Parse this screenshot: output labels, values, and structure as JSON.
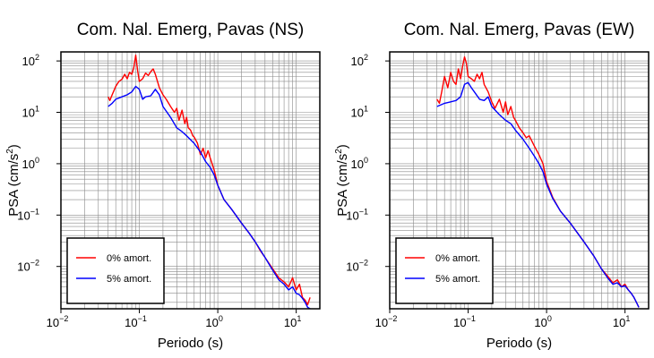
{
  "chart_data": [
    {
      "type": "line",
      "title": "Com. Nal. Emerg, Pavas (NS)",
      "xlabel": "Periodo (s)",
      "ylabel_main": "PSA (cm/s",
      "ylabel_sup": "2",
      "ylabel_end": ")",
      "xscale": "log",
      "yscale": "log",
      "xlim": [
        0.01,
        20
      ],
      "ylim": [
        0.0015,
        150
      ],
      "grid": true,
      "legend_position": "bottom-left",
      "x_ticks": [
        {
          "base": "10",
          "exp": "−2",
          "value": 0.01
        },
        {
          "base": "10",
          "exp": "−1",
          "value": 0.1
        },
        {
          "base": "10",
          "exp": "0",
          "value": 1
        },
        {
          "base": "10",
          "exp": "1",
          "value": 10
        }
      ],
      "y_ticks": [
        {
          "base": "10",
          "exp": "2",
          "value": 100
        },
        {
          "base": "10",
          "exp": "1",
          "value": 10
        },
        {
          "base": "10",
          "exp": "0",
          "value": 1
        },
        {
          "base": "10",
          "exp": "−1",
          "value": 0.1
        },
        {
          "base": "10",
          "exp": "−2",
          "value": 0.01
        }
      ],
      "series": [
        {
          "name": "0% amort.",
          "color": "#ff0000",
          "x": [
            0.04,
            0.042,
            0.045,
            0.05,
            0.055,
            0.06,
            0.065,
            0.07,
            0.075,
            0.08,
            0.085,
            0.09,
            0.095,
            0.1,
            0.11,
            0.12,
            0.13,
            0.14,
            0.15,
            0.16,
            0.18,
            0.2,
            0.22,
            0.25,
            0.28,
            0.3,
            0.32,
            0.35,
            0.38,
            0.4,
            0.42,
            0.45,
            0.48,
            0.5,
            0.55,
            0.6,
            0.65,
            0.7,
            0.75,
            0.8,
            0.9,
            1.0,
            1.2,
            1.5,
            2.0,
            2.5,
            3.0,
            3.5,
            4.0,
            5.0,
            6.0,
            7.0,
            8.0,
            9.0,
            10.0,
            11.0,
            12.0,
            13.0,
            14.0,
            15.0
          ],
          "y": [
            20,
            17,
            22,
            32,
            40,
            44,
            55,
            45,
            60,
            55,
            75,
            130,
            65,
            40,
            45,
            58,
            52,
            62,
            70,
            55,
            30,
            22,
            18,
            13,
            10,
            12,
            7,
            11,
            6,
            8,
            5,
            4.5,
            3.5,
            3.3,
            2.5,
            1.5,
            2,
            1.3,
            1.8,
            1.3,
            0.75,
            0.38,
            0.2,
            0.13,
            0.07,
            0.045,
            0.03,
            0.02,
            0.015,
            0.009,
            0.006,
            0.005,
            0.004,
            0.006,
            0.0035,
            0.0045,
            0.0025,
            0.0022,
            0.0018,
            0.0025
          ]
        },
        {
          "name": "5% amort.",
          "color": "#0000ff",
          "x": [
            0.04,
            0.045,
            0.05,
            0.06,
            0.07,
            0.08,
            0.09,
            0.1,
            0.11,
            0.12,
            0.14,
            0.16,
            0.18,
            0.2,
            0.25,
            0.3,
            0.35,
            0.4,
            0.5,
            0.6,
            0.7,
            0.8,
            0.9,
            1.0,
            1.2,
            1.5,
            2.0,
            2.5,
            3.0,
            4.0,
            5.0,
            6.0,
            7.0,
            8.0,
            9.0,
            10.0,
            11.0,
            12.0,
            13.0,
            14.0,
            15.0
          ],
          "y": [
            13,
            15,
            18,
            20,
            22,
            25,
            32,
            28,
            18,
            20,
            21,
            28,
            22,
            13,
            8,
            5,
            4.2,
            3.5,
            2.5,
            1.7,
            1.1,
            0.85,
            0.6,
            0.38,
            0.2,
            0.13,
            0.07,
            0.045,
            0.03,
            0.015,
            0.0085,
            0.0055,
            0.0045,
            0.0035,
            0.004,
            0.003,
            0.0028,
            0.0024,
            0.002,
            0.0016,
            0.0015
          ]
        }
      ]
    },
    {
      "type": "line",
      "title": "Com. Nal. Emerg, Pavas (EW)",
      "xlabel": "Periodo (s)",
      "ylabel_main": "PSA (cm/s",
      "ylabel_sup": "2",
      "ylabel_end": ")",
      "xscale": "log",
      "yscale": "log",
      "xlim": [
        0.01,
        20
      ],
      "ylim": [
        0.0015,
        150
      ],
      "grid": true,
      "legend_position": "bottom-left",
      "x_ticks": [
        {
          "base": "10",
          "exp": "−2",
          "value": 0.01
        },
        {
          "base": "10",
          "exp": "−1",
          "value": 0.1
        },
        {
          "base": "10",
          "exp": "0",
          "value": 1
        },
        {
          "base": "10",
          "exp": "1",
          "value": 10
        }
      ],
      "y_ticks": [
        {
          "base": "10",
          "exp": "2",
          "value": 100
        },
        {
          "base": "10",
          "exp": "1",
          "value": 10
        },
        {
          "base": "10",
          "exp": "0",
          "value": 1
        },
        {
          "base": "10",
          "exp": "−1",
          "value": 0.1
        },
        {
          "base": "10",
          "exp": "−2",
          "value": 0.01
        }
      ],
      "series": [
        {
          "name": "0% amort.",
          "color": "#ff0000",
          "x": [
            0.04,
            0.043,
            0.046,
            0.05,
            0.055,
            0.06,
            0.065,
            0.07,
            0.075,
            0.08,
            0.085,
            0.09,
            0.095,
            0.1,
            0.11,
            0.12,
            0.13,
            0.14,
            0.15,
            0.16,
            0.18,
            0.2,
            0.22,
            0.25,
            0.28,
            0.3,
            0.32,
            0.35,
            0.38,
            0.4,
            0.45,
            0.5,
            0.55,
            0.6,
            0.7,
            0.8,
            0.9,
            1.0,
            1.2,
            1.5,
            2.0,
            3.0,
            4.0,
            5.0,
            6.0,
            7.0,
            8.0,
            9.0,
            10.0,
            11.0,
            12.0,
            13.0,
            14.0,
            15.0
          ],
          "y": [
            18,
            15,
            25,
            50,
            30,
            60,
            40,
            35,
            70,
            45,
            80,
            120,
            90,
            50,
            45,
            40,
            55,
            45,
            60,
            35,
            25,
            16,
            12,
            18,
            10,
            16,
            9,
            13,
            8,
            7,
            5,
            4,
            3.2,
            3.5,
            2.2,
            1.5,
            1.0,
            0.45,
            0.22,
            0.12,
            0.07,
            0.03,
            0.016,
            0.009,
            0.0065,
            0.0048,
            0.0055,
            0.004,
            0.0045,
            0.0035,
            0.003,
            0.0025,
            0.002,
            0.0016
          ]
        },
        {
          "name": "5% amort.",
          "color": "#0000ff",
          "x": [
            0.04,
            0.045,
            0.05,
            0.06,
            0.07,
            0.08,
            0.09,
            0.1,
            0.11,
            0.12,
            0.14,
            0.16,
            0.18,
            0.2,
            0.25,
            0.3,
            0.35,
            0.4,
            0.5,
            0.6,
            0.7,
            0.8,
            0.9,
            1.0,
            1.2,
            1.5,
            2.0,
            3.0,
            4.0,
            5.0,
            6.0,
            7.0,
            8.0,
            9.0,
            10.0,
            11.0,
            12.0,
            13.0,
            14.0,
            15.0
          ],
          "y": [
            13,
            14,
            15,
            16,
            17,
            20,
            35,
            38,
            30,
            25,
            18,
            17,
            20,
            13,
            9,
            7,
            6,
            4.5,
            3,
            2,
            1.4,
            1.0,
            0.7,
            0.4,
            0.21,
            0.12,
            0.07,
            0.03,
            0.016,
            0.009,
            0.006,
            0.0045,
            0.0048,
            0.004,
            0.0042,
            0.0035,
            0.003,
            0.0025,
            0.002,
            0.0016
          ]
        }
      ]
    }
  ]
}
